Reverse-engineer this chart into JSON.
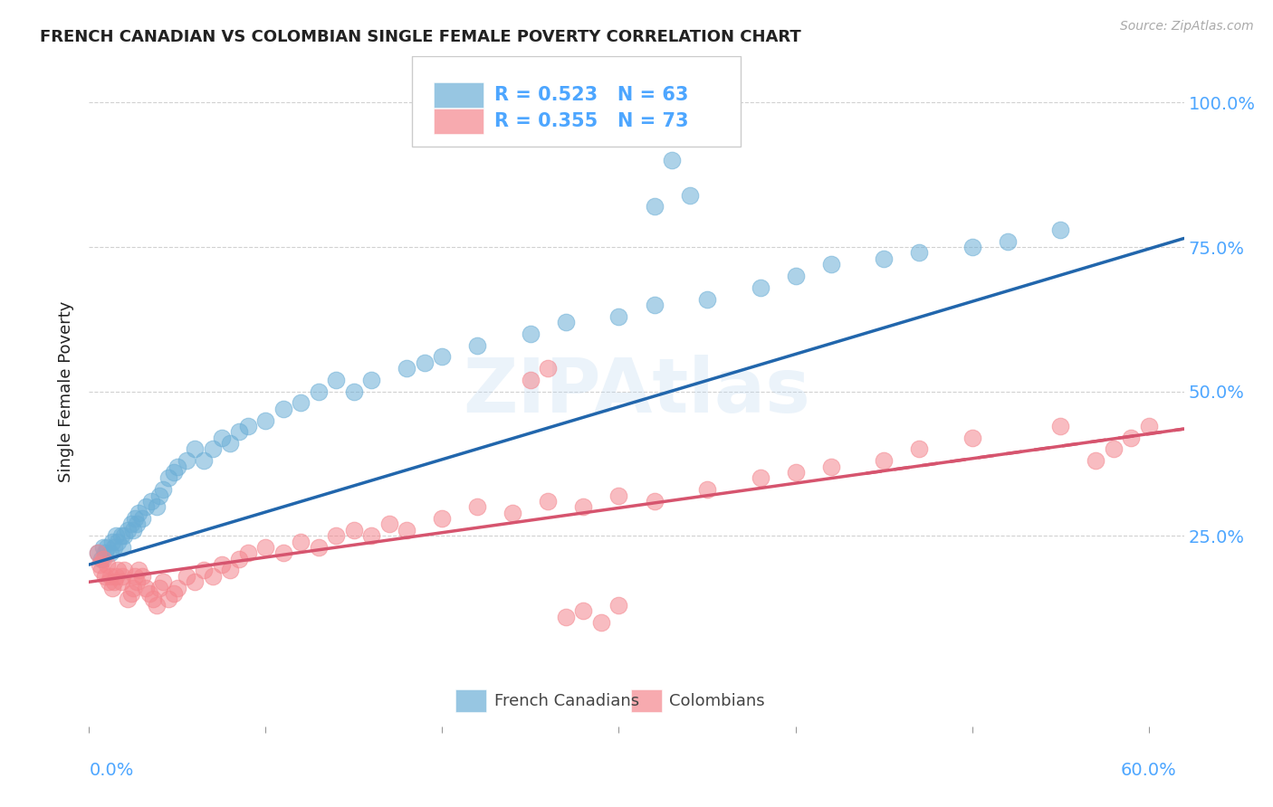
{
  "title": "FRENCH CANADIAN VS COLOMBIAN SINGLE FEMALE POVERTY CORRELATION CHART",
  "source": "Source: ZipAtlas.com",
  "ylabel": "Single Female Poverty",
  "watermark": "ZIPAtlas",
  "legend_blue_r": "R = 0.523",
  "legend_blue_n": "N = 63",
  "legend_pink_r": "R = 0.355",
  "legend_pink_n": "N = 73",
  "blue_color": "#6baed6",
  "pink_color": "#f4868e",
  "blue_line_color": "#2166ac",
  "pink_line_color": "#d6546e",
  "background_color": "#ffffff",
  "grid_color": "#cccccc",
  "tick_color": "#4da6ff",
  "label_color": "#222222",
  "source_color": "#aaaaaa",
  "blue_x": [
    0.005,
    0.007,
    0.008,
    0.009,
    0.01,
    0.012,
    0.013,
    0.014,
    0.015,
    0.016,
    0.018,
    0.019,
    0.02,
    0.022,
    0.024,
    0.025,
    0.026,
    0.027,
    0.028,
    0.03,
    0.032,
    0.035,
    0.038,
    0.04,
    0.042,
    0.045,
    0.048,
    0.05,
    0.055,
    0.06,
    0.065,
    0.07,
    0.075,
    0.08,
    0.085,
    0.09,
    0.1,
    0.11,
    0.12,
    0.13,
    0.14,
    0.15,
    0.16,
    0.18,
    0.19,
    0.2,
    0.22,
    0.25,
    0.27,
    0.3,
    0.32,
    0.35,
    0.38,
    0.4,
    0.42,
    0.45,
    0.47,
    0.5,
    0.52,
    0.55,
    0.32,
    0.33,
    0.34
  ],
  "blue_y": [
    0.22,
    0.21,
    0.23,
    0.22,
    0.23,
    0.22,
    0.24,
    0.23,
    0.25,
    0.24,
    0.25,
    0.23,
    0.25,
    0.26,
    0.27,
    0.26,
    0.28,
    0.27,
    0.29,
    0.28,
    0.3,
    0.31,
    0.3,
    0.32,
    0.33,
    0.35,
    0.36,
    0.37,
    0.38,
    0.4,
    0.38,
    0.4,
    0.42,
    0.41,
    0.43,
    0.44,
    0.45,
    0.47,
    0.48,
    0.5,
    0.52,
    0.5,
    0.52,
    0.54,
    0.55,
    0.56,
    0.58,
    0.6,
    0.62,
    0.63,
    0.65,
    0.66,
    0.68,
    0.7,
    0.72,
    0.73,
    0.74,
    0.75,
    0.76,
    0.78,
    0.82,
    0.9,
    0.84
  ],
  "pink_x": [
    0.005,
    0.006,
    0.007,
    0.008,
    0.009,
    0.01,
    0.011,
    0.012,
    0.013,
    0.014,
    0.015,
    0.016,
    0.018,
    0.019,
    0.02,
    0.022,
    0.024,
    0.025,
    0.026,
    0.027,
    0.028,
    0.03,
    0.032,
    0.034,
    0.036,
    0.038,
    0.04,
    0.042,
    0.045,
    0.048,
    0.05,
    0.055,
    0.06,
    0.065,
    0.07,
    0.075,
    0.08,
    0.085,
    0.09,
    0.1,
    0.11,
    0.12,
    0.13,
    0.14,
    0.15,
    0.16,
    0.17,
    0.18,
    0.2,
    0.22,
    0.24,
    0.26,
    0.28,
    0.3,
    0.32,
    0.35,
    0.38,
    0.4,
    0.42,
    0.45,
    0.47,
    0.5,
    0.55,
    0.57,
    0.58,
    0.59,
    0.6,
    0.25,
    0.26,
    0.27,
    0.28,
    0.29,
    0.3
  ],
  "pink_y": [
    0.22,
    0.2,
    0.19,
    0.21,
    0.18,
    0.2,
    0.17,
    0.18,
    0.16,
    0.17,
    0.18,
    0.19,
    0.17,
    0.18,
    0.19,
    0.14,
    0.15,
    0.16,
    0.18,
    0.17,
    0.19,
    0.18,
    0.16,
    0.15,
    0.14,
    0.13,
    0.16,
    0.17,
    0.14,
    0.15,
    0.16,
    0.18,
    0.17,
    0.19,
    0.18,
    0.2,
    0.19,
    0.21,
    0.22,
    0.23,
    0.22,
    0.24,
    0.23,
    0.25,
    0.26,
    0.25,
    0.27,
    0.26,
    0.28,
    0.3,
    0.29,
    0.31,
    0.3,
    0.32,
    0.31,
    0.33,
    0.35,
    0.36,
    0.37,
    0.38,
    0.4,
    0.42,
    0.44,
    0.38,
    0.4,
    0.42,
    0.44,
    0.52,
    0.54,
    0.11,
    0.12,
    0.1,
    0.13
  ],
  "xlim": [
    0.0,
    0.62
  ],
  "ylim": [
    -0.08,
    1.08
  ],
  "blue_trend_x0": 0.0,
  "blue_trend_x1": 0.62,
  "blue_trend_y0": 0.2,
  "blue_trend_y1": 0.765,
  "pink_trend_x0": 0.0,
  "pink_trend_x1": 0.62,
  "pink_trend_y0": 0.17,
  "pink_trend_y1": 0.435
}
